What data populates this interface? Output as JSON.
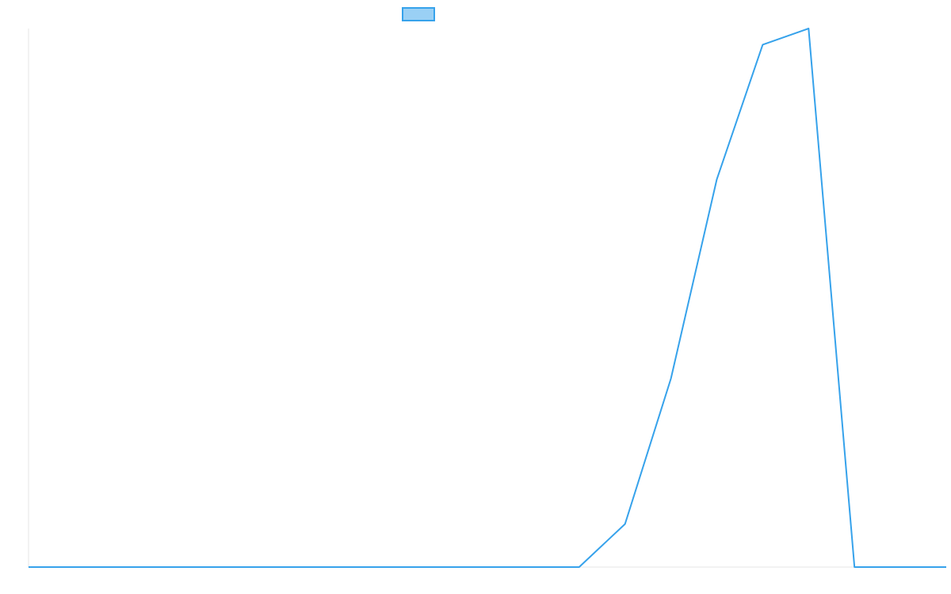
{
  "chart_data": {
    "type": "line",
    "title": "",
    "xlabel": "",
    "ylabel": "",
    "grid": false,
    "legend": {
      "placement": "top-center",
      "entries": [
        {
          "name": "",
          "color": "#36a2eb",
          "fill": "#9ad0f5"
        }
      ]
    },
    "colors": {
      "line": "#36a2eb",
      "legend_fill": "#9ad0f5",
      "axis": "#e6e6e6",
      "background": "#ffffff"
    },
    "x": [
      0,
      0.5,
      0.6,
      0.65,
      0.7,
      0.75,
      0.8,
      0.85,
      0.9,
      1.0
    ],
    "xlim": [
      0,
      1.0
    ],
    "ylim": [
      0,
      1.0
    ],
    "series": [
      {
        "values": [
          0,
          0,
          0,
          0.08,
          0.35,
          0.72,
          0.97,
          1.0,
          0.0,
          0
        ]
      }
    ]
  }
}
